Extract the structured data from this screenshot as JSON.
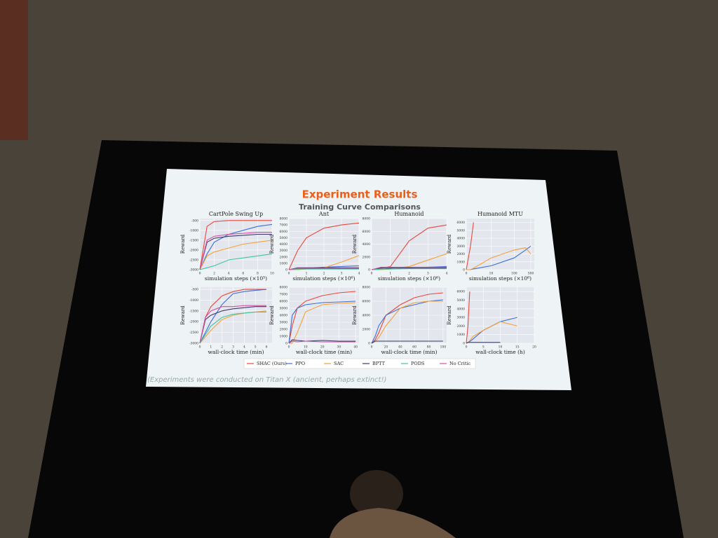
{
  "slide": {
    "title": "Experiment Results",
    "subtitle": "Training Curve Comparisons",
    "caption": "(Experiments were conducted on Titan X (ancient, perhaps extinct!)"
  },
  "chart_data": [
    {
      "type": "line",
      "title": "CartPole Swing Up",
      "xlabel": "simulation steps (×10⁵)",
      "ylabel": "Reward",
      "x": [
        0,
        1,
        2,
        4,
        6,
        8,
        10
      ],
      "xlim": [
        0,
        10
      ],
      "xticks": [
        0,
        2,
        4,
        6,
        8,
        10
      ],
      "ylim": [
        -3000,
        -400
      ],
      "yticks": [
        -500,
        -1000,
        -1500,
        -2000,
        -2500,
        -3000
      ],
      "grid": true,
      "series": [
        {
          "name": "SHAC (Ours)",
          "color": "#e8473b",
          "values": [
            -3000,
            -800,
            -550,
            -500,
            -500,
            -500,
            -500
          ]
        },
        {
          "name": "PPO",
          "color": "#3b6fd6",
          "values": [
            -3000,
            -2200,
            -1600,
            -1200,
            -1000,
            -800,
            -700
          ]
        },
        {
          "name": "SAC",
          "color": "#f5a03a",
          "values": [
            -3000,
            -2300,
            -2100,
            -1900,
            -1700,
            -1600,
            -1500
          ]
        },
        {
          "name": "BPTT",
          "color": "#3a3a6a",
          "values": [
            -3000,
            -1600,
            -1400,
            -1300,
            -1250,
            -1200,
            -1200
          ]
        },
        {
          "name": "PODS",
          "color": "#3cc5a0",
          "values": [
            -3000,
            -2900,
            -2800,
            -2500,
            -2400,
            -2300,
            -2200
          ]
        },
        {
          "name": "No Critic",
          "color": "#d84ea0",
          "values": [
            -3000,
            -1500,
            -1300,
            -1200,
            -1150,
            -1100,
            -1100
          ]
        }
      ]
    },
    {
      "type": "line",
      "title": "Ant",
      "xlabel": "simulation steps (×10⁶)",
      "ylabel": "Reward",
      "x": [
        0,
        0.5,
        1,
        2,
        3,
        4
      ],
      "xlim": [
        0,
        4
      ],
      "xticks": [
        0,
        1,
        2,
        3,
        4
      ],
      "ylim": [
        0,
        8000
      ],
      "yticks": [
        0,
        1000,
        2000,
        3000,
        4000,
        5000,
        6000,
        7000,
        8000
      ],
      "grid": true,
      "series": [
        {
          "name": "SHAC (Ours)",
          "color": "#e8473b",
          "values": [
            0,
            3000,
            5000,
            6500,
            7000,
            7300
          ]
        },
        {
          "name": "PPO",
          "color": "#3b6fd6",
          "values": [
            0,
            100,
            200,
            400,
            500,
            600
          ]
        },
        {
          "name": "SAC",
          "color": "#f5a03a",
          "values": [
            0,
            0,
            100,
            300,
            1200,
            2200
          ]
        },
        {
          "name": "BPTT",
          "color": "#3a3a6a",
          "values": [
            0,
            300,
            300,
            300,
            300,
            300
          ]
        },
        {
          "name": "PODS",
          "color": "#3cc5a0",
          "values": [
            0,
            100,
            100,
            100,
            100,
            100
          ]
        },
        {
          "name": "No Critic",
          "color": "#d84ea0",
          "values": [
            0,
            200,
            200,
            200,
            200,
            200
          ]
        }
      ]
    },
    {
      "type": "line",
      "title": "Humanoid",
      "xlabel": "simulation steps (×10⁶)",
      "ylabel": "Reward",
      "x": [
        0,
        0.5,
        1,
        2,
        3,
        4
      ],
      "xlim": [
        0,
        4
      ],
      "xticks": [
        0,
        1,
        2,
        3,
        4
      ],
      "ylim": [
        0,
        8000
      ],
      "yticks": [
        0,
        2000,
        4000,
        6000,
        8000
      ],
      "grid": true,
      "series": [
        {
          "name": "SHAC (Ours)",
          "color": "#e8473b",
          "values": [
            0,
            200,
            500,
            4500,
            6500,
            7000
          ]
        },
        {
          "name": "PPO",
          "color": "#3b6fd6",
          "values": [
            0,
            100,
            200,
            300,
            400,
            500
          ]
        },
        {
          "name": "SAC",
          "color": "#f5a03a",
          "values": [
            0,
            0,
            100,
            500,
            1500,
            2500
          ]
        },
        {
          "name": "BPTT",
          "color": "#3a3a6a",
          "values": [
            0,
            300,
            300,
            300,
            300,
            300
          ]
        },
        {
          "name": "PODS",
          "color": "#3cc5a0",
          "values": [
            0,
            100,
            100,
            150,
            150,
            150
          ]
        },
        {
          "name": "No Critic",
          "color": "#d84ea0",
          "values": [
            0,
            400,
            400,
            400,
            400,
            400
          ]
        }
      ]
    },
    {
      "type": "line",
      "title": "Humanoid MTU",
      "xlabel": "simulation steps (×10⁶)",
      "ylabel": "Reward",
      "xscale": "symlog",
      "x": [
        0,
        0.5,
        1,
        10,
        100,
        300,
        500
      ],
      "xlim": [
        0,
        700
      ],
      "xticks": [
        0,
        10,
        100,
        500
      ],
      "ylim": [
        0,
        6500
      ],
      "yticks": [
        0,
        1000,
        2000,
        3000,
        4000,
        5000,
        6000
      ],
      "grid": true,
      "series": [
        {
          "name": "SHAC (Ours)",
          "color": "#e8473b",
          "values": [
            0,
            3000,
            6000,
            null,
            null,
            null,
            null
          ]
        },
        {
          "name": "PPO",
          "color": "#3b6fd6",
          "values": [
            0,
            0,
            100,
            500,
            1500,
            2500,
            3000
          ]
        },
        {
          "name": "SAC",
          "color": "#f5a03a",
          "values": [
            0,
            0,
            200,
            1500,
            2500,
            2800,
            2000
          ]
        }
      ]
    },
    {
      "type": "line",
      "title": null,
      "xlabel": "wall-clock time (min)",
      "ylabel": "Reward",
      "x": [
        0,
        0.5,
        1,
        2,
        3,
        4,
        5,
        6
      ],
      "xlim": [
        0,
        6.5
      ],
      "xticks": [
        0,
        1,
        2,
        3,
        4,
        5,
        6
      ],
      "ylim": [
        -3000,
        -400
      ],
      "yticks": [
        -500,
        -1000,
        -1500,
        -2000,
        -2500,
        -3000
      ],
      "grid": true,
      "series": [
        {
          "name": "SHAC (Ours)",
          "color": "#e8473b",
          "values": [
            -3000,
            -1800,
            -1300,
            -800,
            -600,
            -500,
            -500,
            -500
          ]
        },
        {
          "name": "PPO",
          "color": "#3b6fd6",
          "values": [
            -3000,
            -2500,
            -2000,
            -1200,
            -700,
            -600,
            -550,
            -500
          ]
        },
        {
          "name": "SAC",
          "color": "#f5a03a",
          "values": [
            -3000,
            -2700,
            -2400,
            -1900,
            -1700,
            -1600,
            -1550,
            -1500
          ]
        },
        {
          "name": "BPTT",
          "color": "#3a3a6a",
          "values": [
            -3000,
            -1900,
            -1700,
            -1500,
            -1400,
            -1350,
            -1300,
            -1300
          ]
        },
        {
          "name": "PODS",
          "color": "#3cc5a0",
          "values": [
            -3000,
            -2600,
            -2200,
            -1800,
            -1650,
            -1600,
            -1550,
            -1550
          ]
        },
        {
          "name": "No Critic",
          "color": "#d84ea0",
          "values": [
            -3000,
            -1800,
            -1500,
            -1300,
            -1300,
            -1250,
            -1250,
            -1250
          ]
        }
      ]
    },
    {
      "type": "line",
      "title": null,
      "xlabel": "wall-clock time (min)",
      "ylabel": "Reward",
      "x": [
        0,
        2,
        5,
        10,
        20,
        30,
        40
      ],
      "xlim": [
        0,
        42
      ],
      "xticks": [
        0,
        10,
        20,
        30,
        40
      ],
      "ylim": [
        0,
        8000
      ],
      "yticks": [
        0,
        1000,
        2000,
        3000,
        4000,
        5000,
        6000,
        7000,
        8000
      ],
      "grid": true,
      "series": [
        {
          "name": "SHAC (Ours)",
          "color": "#e8473b",
          "values": [
            0,
            2500,
            5000,
            6000,
            6800,
            7200,
            7400
          ]
        },
        {
          "name": "PPO",
          "color": "#3b6fd6",
          "values": [
            0,
            4000,
            5000,
            5500,
            5800,
            5900,
            6000
          ]
        },
        {
          "name": "SAC",
          "color": "#f5a03a",
          "values": [
            0,
            0,
            1500,
            4500,
            5500,
            5700,
            5800
          ]
        },
        {
          "name": "BPTT",
          "color": "#3a3a6a",
          "values": [
            0,
            500,
            400,
            300,
            400,
            300,
            300
          ]
        },
        {
          "name": "No Critic",
          "color": "#d84ea0",
          "values": [
            0,
            300,
            200,
            300,
            200,
            200,
            200
          ]
        }
      ]
    },
    {
      "type": "line",
      "title": null,
      "xlabel": "wall-clock time (min)",
      "ylabel": "Reward",
      "x": [
        0,
        5,
        10,
        20,
        40,
        60,
        80,
        100
      ],
      "xlim": [
        0,
        105
      ],
      "xticks": [
        0,
        20,
        40,
        60,
        80,
        100
      ],
      "ylim": [
        0,
        8000
      ],
      "yticks": [
        0,
        2000,
        4000,
        6000,
        8000
      ],
      "grid": true,
      "series": [
        {
          "name": "SHAC (Ours)",
          "color": "#e8473b",
          "values": [
            0,
            500,
            1500,
            4000,
            5500,
            6500,
            7000,
            7200
          ]
        },
        {
          "name": "PPO",
          "color": "#3b6fd6",
          "values": [
            0,
            1000,
            2500,
            4000,
            5000,
            5500,
            6000,
            6200
          ]
        },
        {
          "name": "SAC",
          "color": "#f5a03a",
          "values": [
            0,
            300,
            800,
            2500,
            5000,
            5800,
            6000,
            6000
          ]
        },
        {
          "name": "BPTT",
          "color": "#3a3a6a",
          "values": [
            0,
            300,
            300,
            300,
            300,
            300,
            300,
            300
          ]
        }
      ]
    },
    {
      "type": "line",
      "title": null,
      "xlabel": "wall-clock time (h)",
      "ylabel": "Reward",
      "x": [
        0,
        0.5,
        1,
        2,
        5,
        10,
        15
      ],
      "xlim": [
        0,
        20
      ],
      "xticks": [
        0,
        5,
        10,
        15,
        20
      ],
      "ylim": [
        0,
        6500
      ],
      "yticks": [
        0,
        1000,
        2000,
        3000,
        4000,
        5000,
        6000
      ],
      "grid": true,
      "series": [
        {
          "name": "SHAC (Ours)",
          "color": "#e8473b",
          "values": [
            0,
            2000,
            6000,
            null,
            null,
            null,
            null
          ]
        },
        {
          "name": "PPO",
          "color": "#3b6fd6",
          "values": [
            0,
            100,
            200,
            500,
            1500,
            2500,
            3000
          ]
        },
        {
          "name": "SAC",
          "color": "#f5a03a",
          "values": [
            0,
            100,
            300,
            800,
            1500,
            2500,
            2000
          ]
        },
        {
          "name": "BPTT",
          "color": "#3a3a6a",
          "values": [
            0,
            100,
            100,
            100,
            100,
            100,
            null
          ]
        }
      ]
    }
  ]
}
